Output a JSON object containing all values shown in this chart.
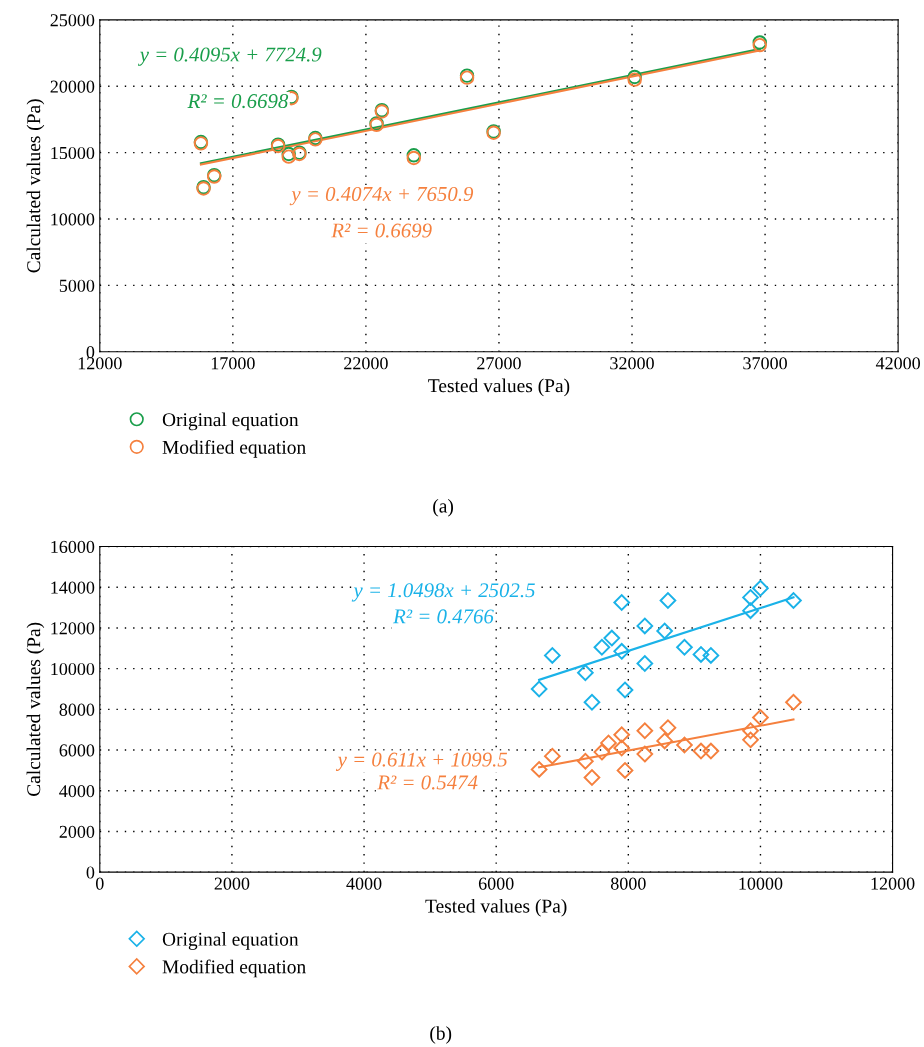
{
  "chart_data": [
    {
      "type": "scatter",
      "xlabel": "Tested values (Pa)",
      "ylabel": "Calculated values (Pa)",
      "xlim": [
        12000,
        42000
      ],
      "xticks": [
        12000,
        17000,
        22000,
        27000,
        32000,
        37000,
        42000
      ],
      "ylim": [
        0,
        25000
      ],
      "yticks": [
        0,
        5000,
        10000,
        15000,
        20000,
        25000
      ],
      "grid": true,
      "legend": "bottom left",
      "marker": "circle",
      "x": [
        15800,
        15900,
        16300,
        18700,
        19100,
        19200,
        19500,
        20100,
        22400,
        22600,
        23800,
        25800,
        26800,
        32100,
        36800
      ],
      "series": [
        {
          "name": "Original equation",
          "color": "#1a9e4b",
          "values": [
            15800,
            12400,
            13300,
            15600,
            14900,
            19200,
            15000,
            16100,
            17200,
            18200,
            14800,
            20800,
            16600,
            20700,
            23300
          ]
        },
        {
          "name": "Modified equation",
          "color": "#f5803e",
          "values": [
            15700,
            12300,
            13200,
            15500,
            14700,
            19100,
            14900,
            16000,
            17100,
            18100,
            14600,
            20650,
            16500,
            20500,
            23100
          ]
        },
        {
          "type": "line",
          "marker": "none",
          "color": "#1a9e4b",
          "x": [
            15800,
            36800
          ],
          "values": [
            14200,
            22800
          ]
        },
        {
          "type": "line",
          "marker": "none",
          "color": "#f5803e",
          "x": [
            15800,
            36800
          ],
          "values": [
            14100,
            22700
          ]
        }
      ],
      "annotations": [
        "y = 0.4095x + 7724.9",
        "R² = 0.6698",
        "y = 0.4074x + 7650.9",
        "R² = 0.6699",
        "(a)"
      ]
    },
    {
      "type": "scatter",
      "xlabel": "Tested values (Pa)",
      "ylabel": "Calculated values (Pa)",
      "xlim": [
        0,
        12000
      ],
      "xticks": [
        0,
        2000,
        4000,
        6000,
        8000,
        10000,
        12000
      ],
      "ylim": [
        0,
        16000
      ],
      "yticks": [
        0,
        2000,
        4000,
        6000,
        8000,
        10000,
        12000,
        14000,
        16000
      ],
      "grid": true,
      "legend": "bottom left",
      "marker": "diamond",
      "x": [
        6650,
        6850,
        7350,
        7450,
        7600,
        7750,
        7900,
        7900,
        7950,
        8250,
        8250,
        8550,
        8600,
        8850,
        9100,
        9250,
        9850,
        9850,
        10000,
        10500
      ],
      "series": [
        {
          "name": "Original equation",
          "color": "#1ab2e8",
          "values": [
            9000,
            10650,
            9800,
            8350,
            11050,
            11500,
            10850,
            13250,
            8950,
            12100,
            10250,
            11850,
            13350,
            11050,
            10700,
            10650,
            12850,
            13500,
            13950,
            13350
          ]
        },
        {
          "name": "Modified equation",
          "color": "#f5803e",
          "x": [
            6650,
            6850,
            7350,
            7450,
            7600,
            7700,
            7900,
            7900,
            7950,
            8250,
            8250,
            8550,
            8600,
            8850,
            9100,
            9250,
            9850,
            9850,
            10000,
            10500
          ],
          "values": [
            5050,
            5700,
            5450,
            4650,
            5900,
            6350,
            6100,
            6750,
            5000,
            5800,
            6950,
            6450,
            7100,
            6250,
            5950,
            5950,
            6950,
            6500,
            7600,
            8350
          ]
        },
        {
          "type": "line",
          "marker": "none",
          "color": "#1ab2e8",
          "x": [
            6650,
            10500
          ],
          "values": [
            9450,
            13500
          ]
        },
        {
          "type": "line",
          "marker": "none",
          "color": "#f5803e",
          "x": [
            6650,
            10500
          ],
          "values": [
            5150,
            7500
          ]
        }
      ],
      "annotations": [
        "y = 1.0498x + 2502.5",
        "R² = 0.4766",
        "y = 0.611x + 1099.5",
        "R² = 0.5474",
        "(b)"
      ]
    }
  ]
}
